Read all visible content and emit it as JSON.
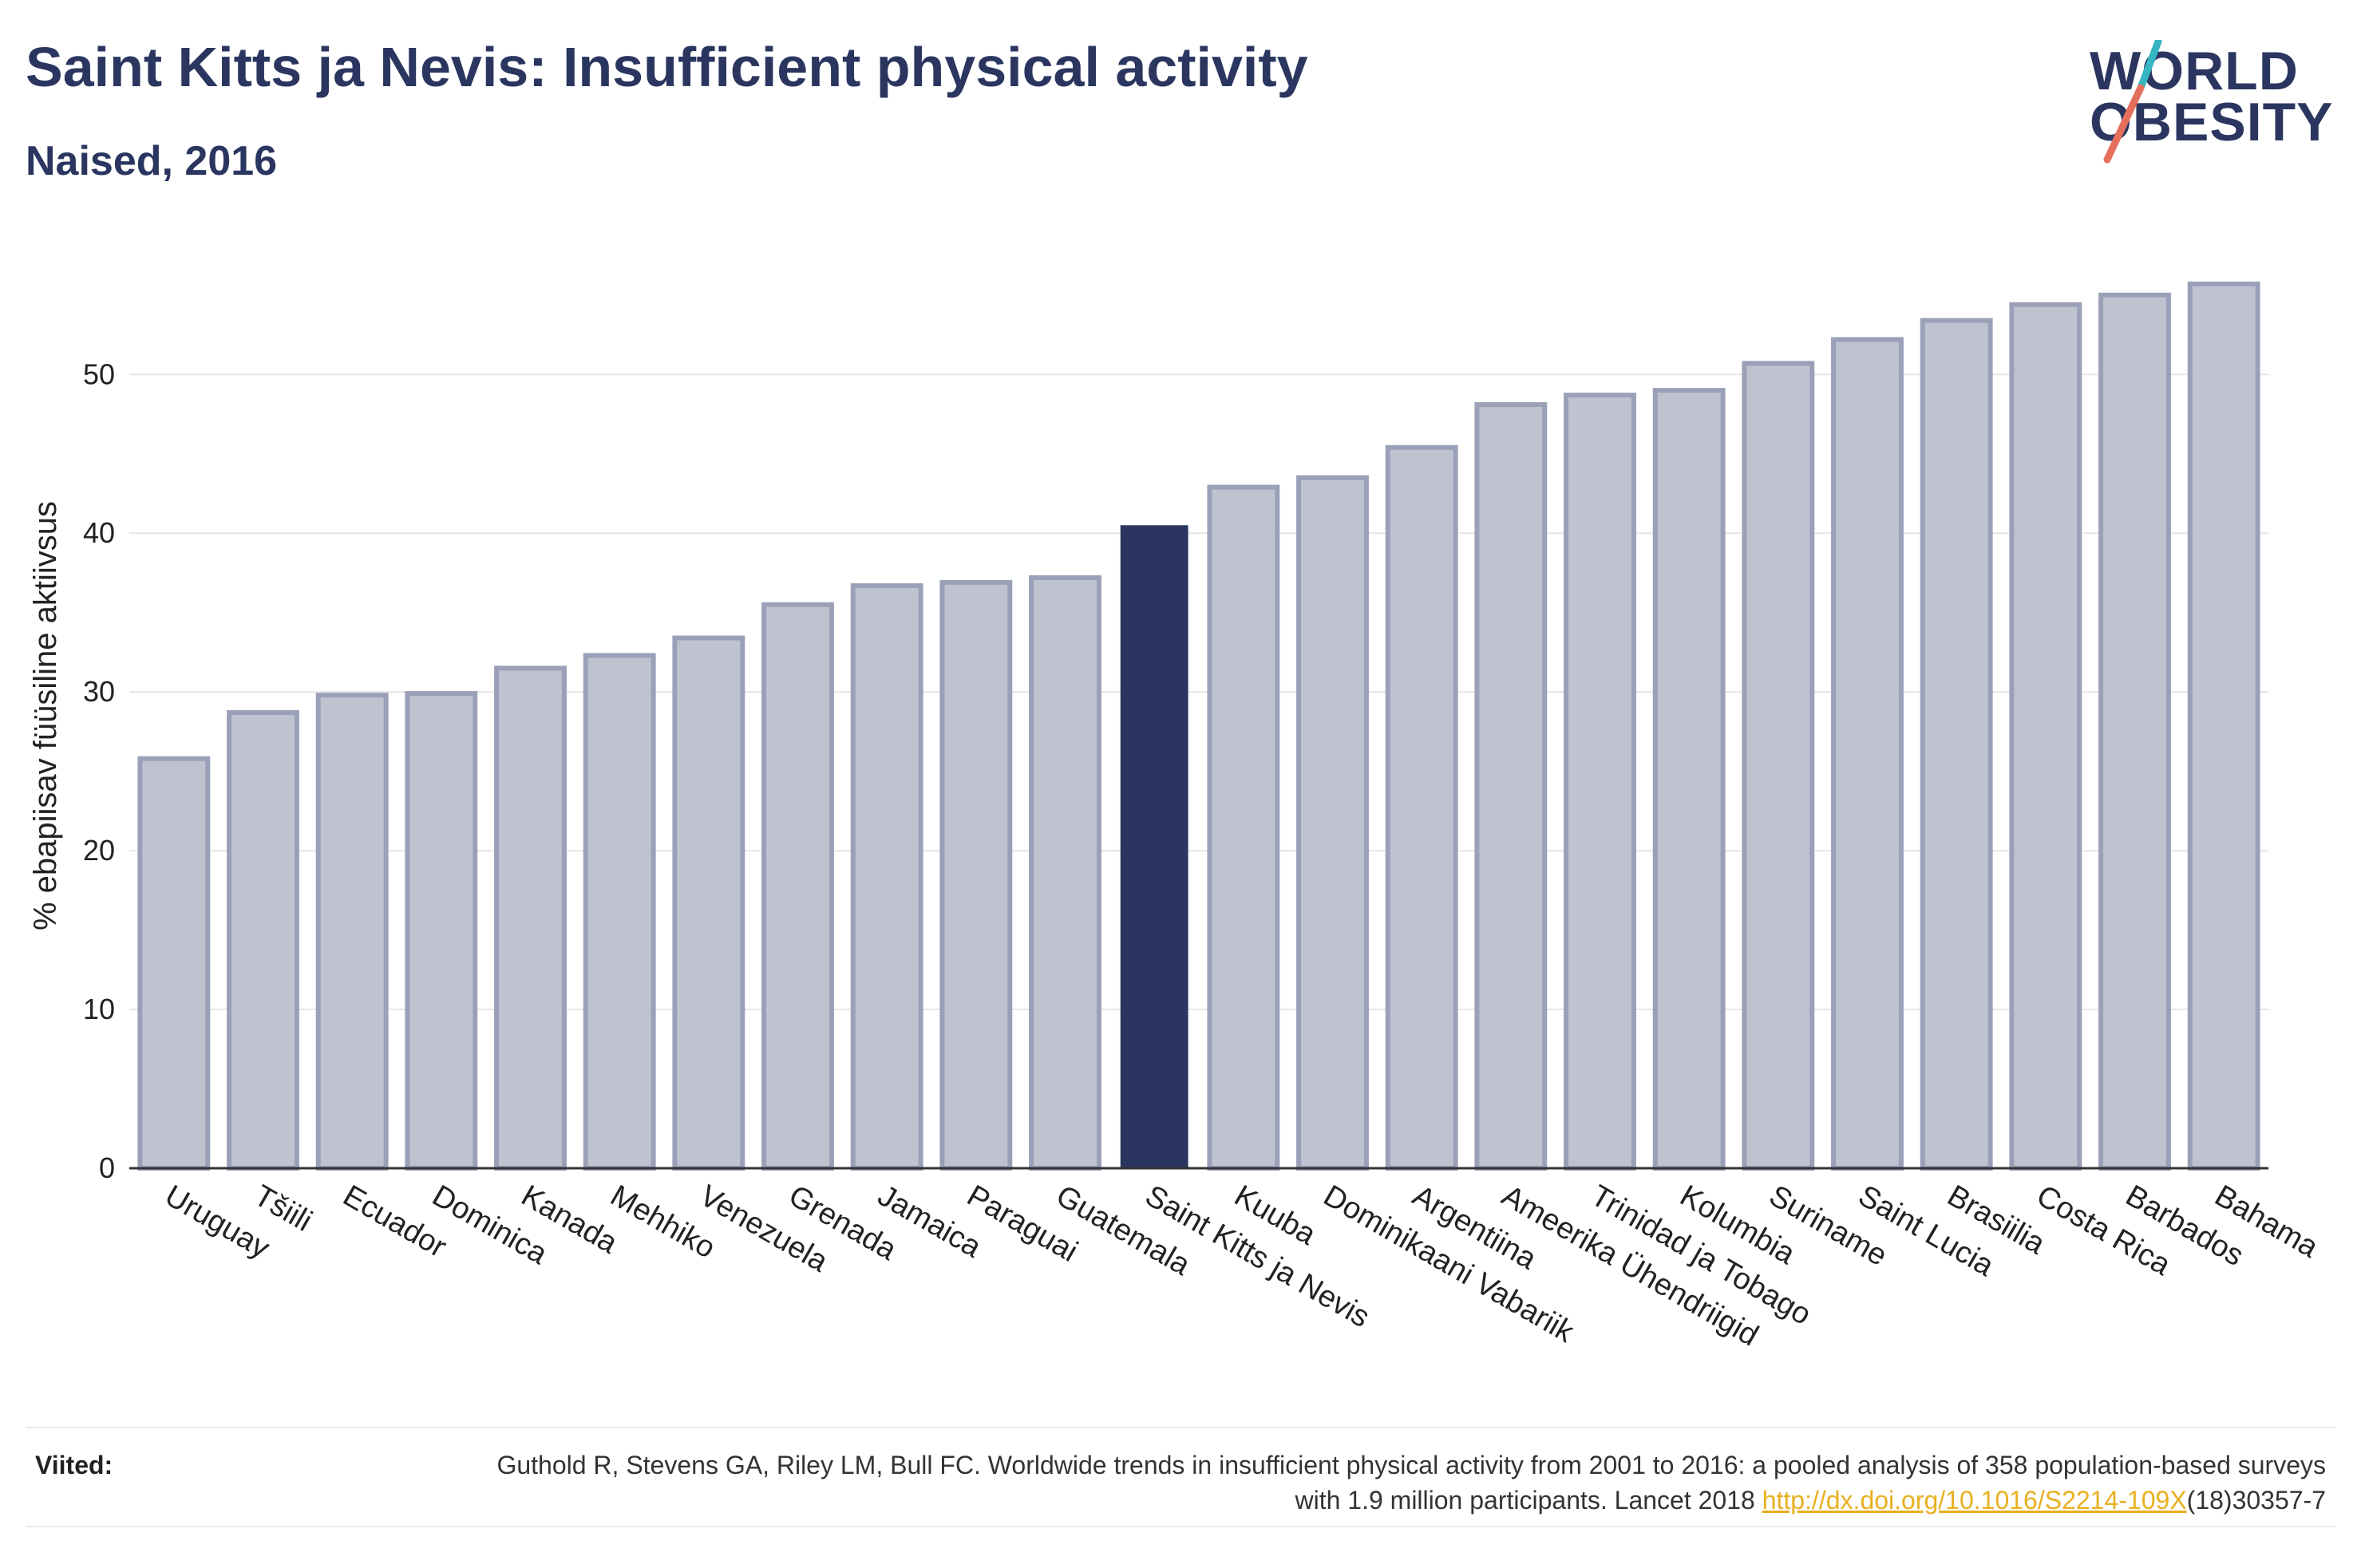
{
  "header": {
    "title": "Saint Kitts ja Nevis: Insufficient physical activity",
    "subtitle": "Naised, 2016"
  },
  "logo": {
    "line1": "WORLD",
    "line2": "OBESITY"
  },
  "colors": {
    "highlight": "#2b3660",
    "bar_fill": "#bfc3d0",
    "bar_stroke": "#9aa0b8",
    "text": "#2b3660",
    "link": "#e8b020"
  },
  "chart_data": {
    "type": "bar",
    "title": "Saint Kitts ja Nevis: Insufficient physical activity",
    "subtitle": "Naised, 2016",
    "ylabel": "% ebapiisav füüsiline aktiivsus",
    "xlabel": "",
    "ylim": [
      0,
      57
    ],
    "yticks": [
      0,
      10,
      20,
      30,
      40,
      50
    ],
    "grid": true,
    "highlight": "Saint Kitts ja Nevis",
    "categories": [
      "Uruguay",
      "Tšiili",
      "Ecuador",
      "Dominica",
      "Kanada",
      "Mehhiko",
      "Venezuela",
      "Grenada",
      "Jamaica",
      "Paraguai",
      "Guatemala",
      "Saint Kitts ja Nevis",
      "Kuuba",
      "Dominikaani Vabariik",
      "Argentiina",
      "Ameerika Ühendriigid",
      "Trinidad ja Tobago",
      "Kolumbia",
      "Suriname",
      "Saint Lucia",
      "Brasiilia",
      "Costa Rica",
      "Barbados",
      "Bahama"
    ],
    "values": [
      25.8,
      28.7,
      29.8,
      29.9,
      31.5,
      32.3,
      33.4,
      35.5,
      36.7,
      36.9,
      37.2,
      40.5,
      42.9,
      43.5,
      45.4,
      48.1,
      48.7,
      49.0,
      50.7,
      52.2,
      53.4,
      54.4,
      55.0,
      55.7
    ]
  },
  "references": {
    "label": "Viited:",
    "text_before_link": "Guthold R, Stevens GA, Riley LM, Bull FC. Worldwide trends in insufficient physical activity from 2001 to 2016: a pooled analysis of 358 population-based surveys with 1.9 million participants. Lancet 2018 ",
    "link_text": "http://dx.doi.org/10.1016/S2214-109X",
    "text_after_link": "(18)30357-7"
  }
}
